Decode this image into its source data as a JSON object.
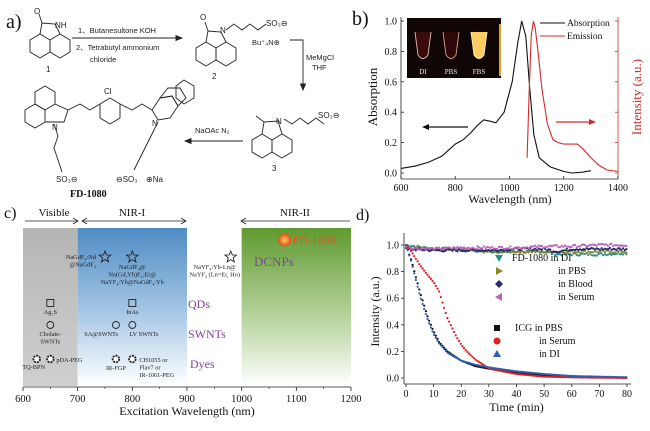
{
  "panel_a": {
    "label": "a)",
    "compound1": "1",
    "compound2": "2",
    "compound3": "3",
    "step1_line1": "1、Butanesultone  KOH",
    "step1_line2": "2、Tetrabutyl ammonium",
    "step1_line3": "chloride",
    "step2_line1": "MeMgCl",
    "step2_line2": "THF",
    "step3": "NaOAc N₂",
    "counterion": "Bu⁺₄N⊕",
    "product_name": "FD-1080",
    "atom_labels": {
      "nh": "NH",
      "o": "O",
      "n": "N",
      "so3": "SO₃⊖",
      "cl": "Cl",
      "na": "⊕Na",
      "so3b": "⊖SO₃"
    }
  },
  "chart_data": [
    {
      "panel": "b)",
      "type": "line",
      "xlabel": "Wavelength (nm)",
      "ylabel": "Absorption",
      "y2label": "Intensity (a.u.)",
      "xlim": [
        600,
        1400
      ],
      "ylim": [
        0,
        1.0
      ],
      "xticks": [
        "600",
        "800",
        "1000",
        "1200",
        "1400"
      ],
      "yticks": [
        "0.0",
        "0.2",
        "0.4",
        "0.6",
        "0.8",
        "1.0"
      ],
      "legend_position": "top-right",
      "inset_labels": [
        "DI",
        "PBS",
        "FBS"
      ],
      "series": [
        {
          "name": "Absorption",
          "color": "#111111",
          "x": [
            600,
            650,
            700,
            750,
            800,
            830,
            860,
            880,
            905,
            930,
            950,
            980,
            1010,
            1030,
            1045,
            1060,
            1075,
            1090,
            1110,
            1150,
            1200,
            1230,
            1270,
            1300
          ],
          "y": [
            0.03,
            0.045,
            0.07,
            0.11,
            0.19,
            0.22,
            0.27,
            0.31,
            0.35,
            0.34,
            0.33,
            0.4,
            0.6,
            0.85,
            1.0,
            0.9,
            0.55,
            0.25,
            0.1,
            0.04,
            0.01,
            0.0,
            0.005,
            0.015
          ]
        },
        {
          "name": "Emission",
          "color": "#d42a2a",
          "x": [
            1065,
            1072,
            1080,
            1088,
            1095,
            1105,
            1120,
            1140,
            1160,
            1180,
            1200,
            1250,
            1270,
            1300,
            1330,
            1360,
            1400
          ],
          "y": [
            0.1,
            0.5,
            0.9,
            1.0,
            0.95,
            0.8,
            0.55,
            0.32,
            0.22,
            0.2,
            0.19,
            0.19,
            0.16,
            0.1,
            0.05,
            0.02,
            0.01
          ]
        }
      ]
    },
    {
      "panel": "c)",
      "type": "scatter",
      "xlabel": "Excitation Wavelength (nm)",
      "xlim": [
        600,
        1200
      ],
      "xticks": [
        "600",
        "700",
        "800",
        "900",
        "1000",
        "1100",
        "1200"
      ],
      "regions": [
        {
          "name": "Visible",
          "from": 600,
          "to": 700,
          "color": "#b9b9b9"
        },
        {
          "name": "NIR-I",
          "from": 700,
          "to": 900,
          "color": "#5b95c9"
        },
        {
          "name": "NIR-II",
          "from": 1000,
          "to": 1200,
          "color": "#6aa33c"
        }
      ],
      "categories": [
        {
          "name": "DCNPs",
          "color": "#7a4a8a"
        },
        {
          "name": "QDs",
          "color": "#8a3f9a"
        },
        {
          "name": "SWNTs",
          "color": "#8a3f9a"
        },
        {
          "name": "Dyes",
          "color": "#8a3f9a"
        }
      ],
      "highlight": {
        "label": "FD-1080",
        "x": 1064,
        "color": "#e8521e"
      },
      "points": [
        {
          "marker": "star",
          "x": 750,
          "row": "DCNPs",
          "label": [
            "NaGdF₄:Nd",
            "@NaGdF₄"
          ]
        },
        {
          "marker": "star",
          "x": 800,
          "row": "DCNPs",
          "label": [
            "NaGdF₄@",
            "Na(Gd,Yb)F₄:Er@",
            "NaYF₄:Yb@NaGdF₄:Yb"
          ]
        },
        {
          "marker": "star",
          "x": 980,
          "row": "DCNPs",
          "label": [
            "NaYF₄:Yb-Ln@",
            "NaYF₄ (Ln=Er, Ho)"
          ]
        },
        {
          "marker": "square",
          "x": 650,
          "row": "QDs",
          "label": [
            "Ag₂S"
          ]
        },
        {
          "marker": "square",
          "x": 800,
          "row": "QDs",
          "label": [
            "InAs"
          ]
        },
        {
          "marker": "circle",
          "x": 650,
          "row": "SWNTs",
          "label": [
            "Cholate-",
            "SWNTs"
          ]
        },
        {
          "marker": "circle",
          "x": 770,
          "row": "SWNTs",
          "label": [
            "SA@SWNTs"
          ]
        },
        {
          "marker": "circle",
          "x": 800,
          "row": "SWNTs",
          "label": [
            "LV SWNTs"
          ]
        },
        {
          "marker": "dye",
          "x": 625,
          "row": "Dyes",
          "label": [
            "TQ-BPN"
          ]
        },
        {
          "marker": "dye",
          "x": 650,
          "row": "Dyes",
          "label": [
            "pDA-PEG"
          ]
        },
        {
          "marker": "dye",
          "x": 770,
          "row": "Dyes",
          "label": [
            "IR-FGP"
          ]
        },
        {
          "marker": "dye",
          "x": 800,
          "row": "Dyes",
          "label": [
            "CH1055 or",
            "Flav7 or",
            "IR-1061-PEG"
          ]
        }
      ]
    },
    {
      "panel": "d)",
      "type": "scatter",
      "xlabel": "Time (min)",
      "ylabel": "Intensity (a.u.)",
      "xlim": [
        0,
        80
      ],
      "ylim": [
        0,
        1.0
      ],
      "xticks": [
        "0",
        "10",
        "20",
        "30",
        "40",
        "50",
        "60",
        "70",
        "80"
      ],
      "yticks": [
        "0.0",
        "0.2",
        "0.4",
        "0.6",
        "0.8",
        "1.0"
      ],
      "legend_position": "center-right",
      "legend_groups": [
        "FD-1080",
        "ICG"
      ],
      "series": [
        {
          "name": "FD-1080 in DI",
          "marker": "triangle-down",
          "color": "#2a8f8a",
          "x": [
            0,
            10,
            20,
            30,
            40,
            50,
            55,
            60,
            70,
            80
          ],
          "y": [
            1.0,
            0.97,
            0.97,
            0.95,
            0.95,
            0.95,
            0.93,
            0.93,
            0.93,
            0.94
          ]
        },
        {
          "name": "in PBS",
          "marker": "triangle-right",
          "color": "#8a8a2a",
          "x": [
            0,
            10,
            20,
            30,
            40,
            50,
            60,
            70,
            80
          ],
          "y": [
            0.98,
            0.97,
            0.96,
            0.95,
            0.95,
            0.95,
            0.95,
            0.95,
            0.95
          ]
        },
        {
          "name": "in Blood",
          "marker": "diamond",
          "color": "#1f2f6b",
          "x": [
            0,
            10,
            20,
            30,
            40,
            50,
            55,
            60,
            70,
            80
          ],
          "y": [
            0.97,
            0.96,
            0.96,
            0.96,
            0.97,
            0.97,
            0.95,
            0.97,
            0.97,
            0.97
          ]
        },
        {
          "name": "in Serum",
          "marker": "triangle-left",
          "color": "#c060c0",
          "x": [
            0,
            10,
            20,
            30,
            40,
            50,
            60,
            70,
            80
          ],
          "y": [
            0.98,
            0.97,
            0.98,
            0.98,
            0.98,
            0.99,
            0.99,
            1.0,
            1.0
          ]
        },
        {
          "name": "ICG in PBS",
          "marker": "square",
          "color": "#111111",
          "x": [
            0,
            2,
            5,
            8,
            10,
            12,
            15,
            20,
            25,
            30,
            40,
            50,
            60,
            70,
            80
          ],
          "y": [
            1.0,
            0.88,
            0.65,
            0.45,
            0.35,
            0.27,
            0.2,
            0.13,
            0.09,
            0.07,
            0.04,
            0.02,
            0.01,
            0.005,
            0.005
          ]
        },
        {
          "name": "in Serum",
          "marker": "circle",
          "color": "#e02020",
          "x": [
            0,
            2,
            5,
            8,
            10,
            12,
            13,
            15,
            18,
            20,
            22,
            25,
            28,
            30,
            35,
            40,
            50,
            60,
            80
          ],
          "y": [
            1.0,
            0.95,
            0.85,
            0.77,
            0.72,
            0.65,
            0.58,
            0.45,
            0.32,
            0.25,
            0.2,
            0.14,
            0.1,
            0.07,
            0.05,
            0.03,
            0.01,
            0.005,
            0.0
          ]
        },
        {
          "name": "in DI",
          "marker": "triangle-up",
          "color": "#2f5fb0",
          "x": [
            0,
            2,
            5,
            8,
            10,
            12,
            15,
            20,
            25,
            30,
            40,
            50,
            60,
            70,
            80
          ],
          "y": [
            1.0,
            0.87,
            0.62,
            0.43,
            0.33,
            0.26,
            0.19,
            0.13,
            0.1,
            0.08,
            0.05,
            0.03,
            0.015,
            0.01,
            0.005
          ]
        }
      ]
    }
  ]
}
